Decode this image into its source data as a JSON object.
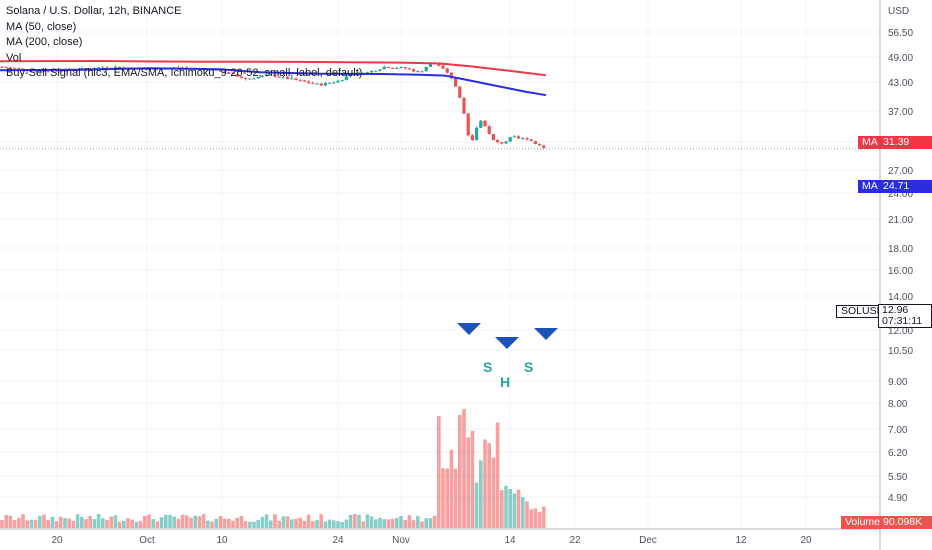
{
  "legend": {
    "title": "Solana / U.S. Dollar, 12h, BINANCE",
    "ma50": "MA (50, close)",
    "ma200": "MA (200, close)",
    "vol": "Vol",
    "signal": "Buy-Sell Signal (hlc3, EMA/SMA, Ichimoku_9-26-52, small, label, default)"
  },
  "axis": {
    "currency": "USD",
    "y_ticks": [
      "56.50",
      "49.00",
      "43.00",
      "37.00",
      "31.00",
      "27.00",
      "24.00",
      "21.00",
      "18.00",
      "16.00",
      "14.00",
      "12.00",
      "10.50",
      "9.00",
      "8.00",
      "7.00",
      "6.20",
      "5.50",
      "4.90"
    ],
    "x_ticks": [
      "20",
      "Oct",
      "10",
      "24",
      "Nov",
      "14",
      "22",
      "Dec",
      "12",
      "20"
    ]
  },
  "tags": {
    "ma_label": "MA",
    "ma200_value": "31.39",
    "ma50_value": "24.71",
    "symbol": "SOLUSD",
    "price": "12.96",
    "countdown": "07:31:11",
    "volume_label": "Volume",
    "volume_value": "90.098K"
  },
  "colors": {
    "up": "#26a69a",
    "down": "#ef5350",
    "ma200": "#f23645",
    "ma50": "#2a2ee0",
    "marker": "#1e53b5",
    "pattern_text": "#26a69a"
  },
  "pattern": {
    "left": "S",
    "head": "H",
    "right": "S"
  },
  "chart_data": {
    "type": "candlestick",
    "scale": "log",
    "ylim": [
      4.6,
      58
    ],
    "series": [
      {
        "name": "MA (200, close)",
        "values_description": "declining from ~37 to 31.39"
      },
      {
        "name": "MA (50, close)",
        "values_description": "declining from ~34 to 24.71"
      }
    ],
    "last_price": 12.96,
    "ma200_last": 31.39,
    "ma50_last": 24.71,
    "volume_last": "90.098K"
  }
}
